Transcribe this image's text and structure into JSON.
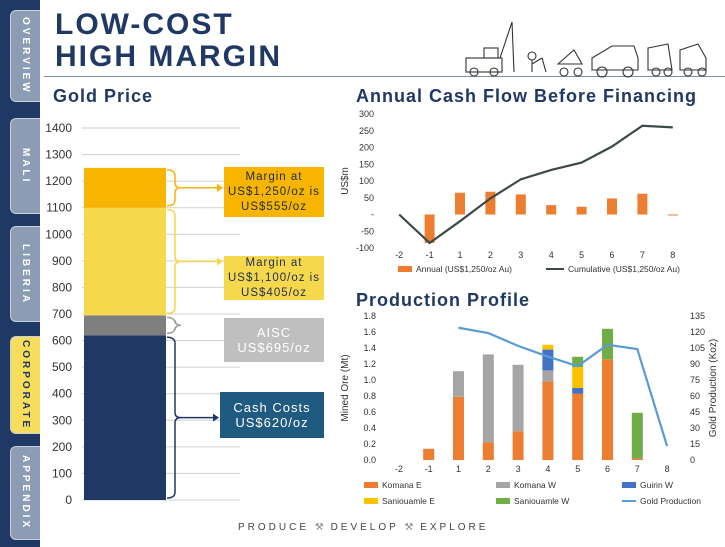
{
  "sidebar": {
    "tabs": [
      {
        "label": "OVERVIEW",
        "active": false
      },
      {
        "label": "MALI",
        "active": false
      },
      {
        "label": "LIBERIA",
        "active": false
      },
      {
        "label": "CORPORATE",
        "active": true
      },
      {
        "label": "APPENDIX",
        "active": false
      }
    ]
  },
  "header": {
    "title_line1": "LOW-COST",
    "title_line2": "HIGH MARGIN"
  },
  "gold_price": {
    "title": "Gold Price",
    "callouts": {
      "margin_1250": "Margin at US$1,250/oz is US$555/oz",
      "margin_1100": "Margin at US$1,100/oz is US$405/oz",
      "aisc": "AISC US$695/oz",
      "cash_costs": "Cash Costs US$620/oz"
    }
  },
  "cash_flow": {
    "title": "Annual Cash Flow Before Financing"
  },
  "production": {
    "title": "Production Profile"
  },
  "footer": {
    "words": [
      "PRODUCE",
      "DEVELOP",
      "EXPLORE"
    ]
  },
  "chart_data": [
    {
      "id": "gold_price",
      "type": "bar",
      "ylim": [
        0,
        1400
      ],
      "yticks": [
        0,
        100,
        200,
        300,
        400,
        500,
        600,
        700,
        800,
        900,
        1000,
        1100,
        1200,
        1300,
        1400
      ],
      "segments": [
        {
          "name": "Cash Costs",
          "from": 0,
          "to": 620,
          "color": "#1f3864"
        },
        {
          "name": "AISC",
          "from": 620,
          "to": 695,
          "color": "#7f7f7f"
        },
        {
          "name": "Margin at US$1,100/oz",
          "from": 695,
          "to": 1100,
          "color": "#f5d84c"
        },
        {
          "name": "Margin at US$1,250/oz",
          "from": 1100,
          "to": 1250,
          "color": "#f7b500"
        }
      ],
      "grid": true
    },
    {
      "id": "cash_flow",
      "type": "bar+line",
      "x": [
        "-2",
        "-1",
        "1",
        "2",
        "3",
        "4",
        "5",
        "6",
        "7",
        "8"
      ],
      "ylabel": "US$m",
      "ylim": [
        -100,
        300
      ],
      "yticks": [
        -100,
        -50,
        0,
        50,
        100,
        150,
        200,
        250,
        300
      ],
      "ytick_labels": [
        "-100",
        "-50",
        "-",
        "50",
        "100",
        "150",
        "200",
        "250",
        "300"
      ],
      "series": [
        {
          "name": "Annual (US$1,250/oz Au)",
          "kind": "bar",
          "color": "#ed7d31",
          "values": [
            0,
            -85,
            65,
            68,
            60,
            28,
            23,
            48,
            62,
            -3
          ]
        },
        {
          "name": "Cumulative (US$1,250/oz Au)",
          "kind": "line",
          "color": "#3a4a4a",
          "values": [
            0,
            -85,
            -20,
            48,
            105,
            133,
            155,
            203,
            265,
            260
          ]
        }
      ]
    },
    {
      "id": "production",
      "type": "stacked_bar+line",
      "x": [
        "-2",
        "-1",
        "1",
        "2",
        "3",
        "4",
        "5",
        "6",
        "7",
        "8"
      ],
      "ylabel": "Mined Ore (Mt)",
      "y2label": "Gold Production (Koz)",
      "ylim": [
        0,
        1.8
      ],
      "yticks": [
        0.0,
        0.2,
        0.4,
        0.6,
        0.8,
        1.0,
        1.2,
        1.4,
        1.6,
        1.8
      ],
      "y2lim": [
        0,
        135
      ],
      "y2ticks": [
        0,
        15,
        30,
        45,
        60,
        75,
        90,
        105,
        120,
        135
      ],
      "series": [
        {
          "name": "Komana E",
          "color": "#ed7d31",
          "values": [
            0,
            0.14,
            0.79,
            0.22,
            0.36,
            0.98,
            0.83,
            1.26,
            0.02,
            0
          ]
        },
        {
          "name": "Komana W",
          "color": "#a5a5a5",
          "values": [
            0,
            0,
            0.32,
            1.1,
            0.83,
            0.14,
            0,
            0,
            0,
            0
          ]
        },
        {
          "name": "Guirin W",
          "color": "#4472c4",
          "values": [
            0,
            0,
            0,
            0,
            0,
            0.26,
            0.07,
            0,
            0,
            0
          ]
        },
        {
          "name": "Saniouamle E",
          "color": "#ffc000",
          "values": [
            0,
            0,
            0,
            0,
            0,
            0.06,
            0.26,
            0,
            0,
            0
          ]
        },
        {
          "name": "Saniouamle W",
          "color": "#70ad47",
          "values": [
            0,
            0,
            0,
            0,
            0,
            0,
            0.13,
            0.38,
            0.57,
            0
          ]
        },
        {
          "name": "Gold Production",
          "kind": "line",
          "axis": "y2",
          "color": "#5b9bd5",
          "values": [
            null,
            null,
            124,
            119,
            107,
            97,
            88,
            108,
            104,
            13
          ]
        }
      ]
    }
  ]
}
